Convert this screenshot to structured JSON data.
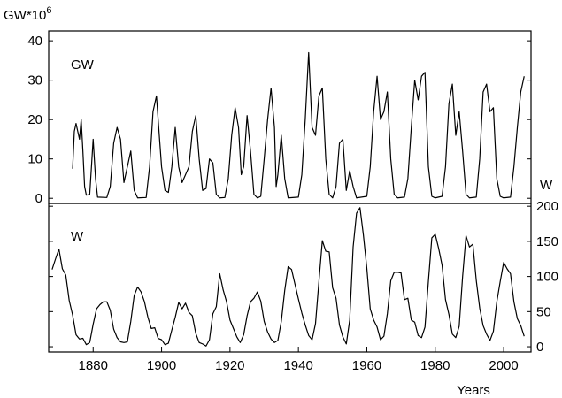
{
  "chart_data": [
    {
      "type": "line",
      "ylabel": "GW*10",
      "ylabel_exponent": "6",
      "series": [
        {
          "name": "GW",
          "color": "#000000",
          "x": [
            1874,
            1874.5,
            1875,
            1876,
            1876.5,
            1877,
            1877.5,
            1878,
            1879,
            1879.5,
            1880,
            1880.7,
            1881.3,
            1884,
            1885,
            1886,
            1887,
            1888,
            1889,
            1890,
            1891,
            1892,
            1893,
            1895.5,
            1896.5,
            1897.5,
            1898.5,
            1899,
            1900,
            1901,
            1902,
            1903,
            1904,
            1905,
            1906,
            1907,
            1908,
            1909,
            1910,
            1911,
            1912,
            1913,
            1914,
            1915,
            1916,
            1917,
            1918.5,
            1919.5,
            1920.5,
            1921.5,
            1922.5,
            1923.3,
            1924,
            1925,
            1926,
            1927,
            1928,
            1929,
            1930,
            1931,
            1932,
            1933,
            1933.5,
            1934,
            1935,
            1936,
            1937,
            1940,
            1941,
            1942,
            1943,
            1944,
            1945,
            1946,
            1947,
            1948,
            1949,
            1950,
            1951,
            1952,
            1953,
            1954,
            1955,
            1956,
            1957,
            1960,
            1961,
            1962,
            1963,
            1964,
            1965,
            1966,
            1967,
            1968,
            1969,
            1971,
            1972,
            1973,
            1974,
            1975,
            1976,
            1977,
            1978,
            1979,
            1980,
            1982,
            1983,
            1984,
            1985,
            1986,
            1987,
            1988,
            1989,
            1990,
            1992,
            1993,
            1994,
            1995,
            1996,
            1997,
            1998,
            1999,
            2000,
            2002,
            2003,
            2004,
            2005,
            2006
          ],
          "values": [
            7.5,
            17,
            19,
            15,
            20,
            12,
            3,
            0.8,
            1,
            8,
            15,
            5,
            0.3,
            0.2,
            3,
            14,
            18,
            15,
            4,
            8,
            12,
            2,
            0.1,
            0.2,
            8,
            22,
            26,
            20,
            8,
            2,
            1.5,
            8,
            18,
            8,
            4,
            6,
            8,
            17,
            21,
            10,
            2,
            2.5,
            10,
            9,
            1,
            0.1,
            0.2,
            5,
            16,
            23,
            18,
            6,
            8,
            21,
            12,
            1,
            0.1,
            0.5,
            10,
            20,
            28,
            18,
            3,
            6,
            16,
            5,
            0.1,
            0.3,
            6,
            20,
            37,
            18,
            16,
            26,
            28,
            10,
            1,
            0.1,
            3,
            14,
            15,
            2,
            7,
            3,
            0.1,
            0.5,
            8,
            22,
            31,
            20,
            22,
            27,
            10,
            1,
            0.1,
            0.3,
            5,
            18,
            30,
            25,
            31,
            32,
            8,
            0.5,
            0.1,
            0.5,
            8,
            24,
            29,
            16,
            22,
            12,
            1,
            0.1,
            0.3,
            10,
            27,
            29,
            22,
            23,
            5,
            0.5,
            0.1,
            0.3,
            8,
            18,
            27,
            31
          ]
        }
      ],
      "xlim": [
        1867,
        2008
      ],
      "ylim": [
        -1.3,
        42.5
      ],
      "yticks": [
        0,
        10,
        20,
        30,
        40
      ],
      "yaxis_side": "left"
    },
    {
      "type": "line",
      "ylabel": "W",
      "xlabel": "Years",
      "series": [
        {
          "name": "W",
          "color": "#000000",
          "x": [
            1868,
            1869,
            1870,
            1871,
            1872,
            1873,
            1874,
            1875,
            1876,
            1877,
            1878,
            1879,
            1880,
            1881,
            1882,
            1883,
            1884,
            1885,
            1886,
            1887,
            1888,
            1889,
            1890,
            1891,
            1892,
            1893,
            1894,
            1895,
            1896,
            1897,
            1898,
            1899,
            1900,
            1901,
            1902,
            1903,
            1904,
            1905,
            1906,
            1907,
            1908,
            1909,
            1910,
            1911,
            1912,
            1913,
            1914,
            1915,
            1916,
            1917,
            1918,
            1919,
            1920,
            1921,
            1922,
            1923,
            1924,
            1925,
            1926,
            1927,
            1928,
            1929,
            1930,
            1931,
            1932,
            1933,
            1934,
            1935,
            1936,
            1937,
            1938,
            1939,
            1940,
            1941,
            1942,
            1943,
            1944,
            1945,
            1946,
            1947,
            1948,
            1949,
            1950,
            1951,
            1952,
            1953,
            1954,
            1955,
            1956,
            1957,
            1958,
            1959,
            1960,
            1961,
            1962,
            1963,
            1964,
            1965,
            1966,
            1967,
            1968,
            1969,
            1970,
            1971,
            1972,
            1973,
            1974,
            1975,
            1976,
            1977,
            1978,
            1979,
            1980,
            1981,
            1982,
            1983,
            1984,
            1985,
            1986,
            1987,
            1988,
            1989,
            1990,
            1991,
            1992,
            1993,
            1994,
            1995,
            1996,
            1997,
            1998,
            1999,
            2000,
            2001,
            2002,
            2003,
            2004,
            2005,
            2006
          ],
          "values": [
            110,
            125,
            139,
            111,
            102,
            66,
            45,
            17,
            11,
            12,
            3,
            6,
            32,
            54,
            60,
            64,
            64,
            52,
            25,
            13,
            7,
            6,
            7,
            36,
            73,
            85,
            78,
            64,
            42,
            26,
            27,
            12,
            10,
            3,
            5,
            24,
            42,
            63,
            54,
            62,
            49,
            44,
            19,
            6,
            4,
            1,
            10,
            47,
            57,
            104,
            81,
            64,
            38,
            26,
            14,
            6,
            17,
            44,
            64,
            69,
            78,
            65,
            36,
            21,
            11,
            6,
            9,
            36,
            80,
            114,
            110,
            89,
            68,
            48,
            31,
            16,
            10,
            33,
            93,
            151,
            136,
            135,
            84,
            69,
            31,
            14,
            4,
            38,
            142,
            190,
            198,
            159,
            112,
            54,
            38,
            28,
            10,
            15,
            47,
            94,
            106,
            106,
            105,
            67,
            69,
            38,
            35,
            16,
            13,
            28,
            93,
            155,
            160,
            140,
            116,
            67,
            46,
            18,
            13,
            29,
            100,
            158,
            142,
            146,
            94,
            55,
            30,
            18,
            9,
            22,
            64,
            93,
            120,
            111,
            104,
            64,
            40,
            30,
            15
          ]
        }
      ],
      "xlim": [
        1867,
        2008
      ],
      "ylim": [
        -7.5,
        204
      ],
      "yticks": [
        0,
        50,
        100,
        150,
        200
      ],
      "yaxis_side": "right",
      "xticks": [
        1880,
        1900,
        1920,
        1940,
        1960,
        1980,
        2000
      ]
    }
  ]
}
